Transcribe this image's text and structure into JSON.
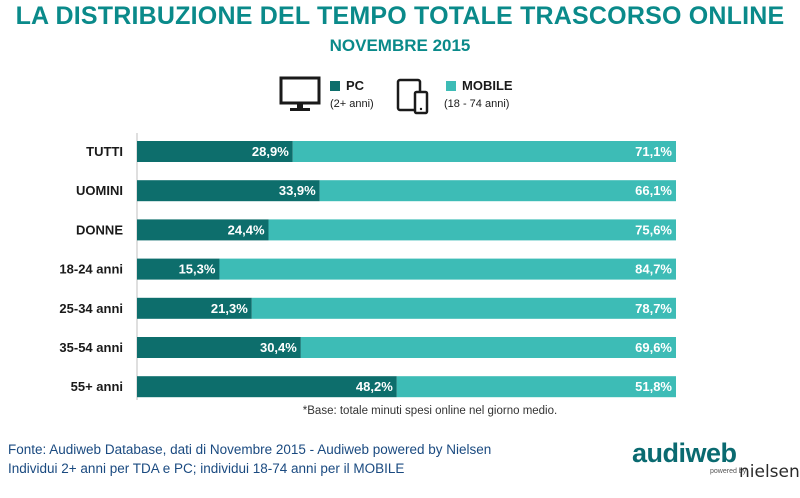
{
  "header": {
    "title": "LA DISTRIBUZIONE DEL TEMPO TOTALE TRASCORSO ONLINE",
    "subtitle": "NOVEMBRE 2015"
  },
  "legend": {
    "pc": {
      "label": "PC",
      "sub": "(2+ anni)",
      "icon": "desktop-monitor-icon",
      "color": "#0d6e6c"
    },
    "mobile": {
      "label": "MOBILE",
      "sub": "(18 - 74 anni)",
      "icon": "tablet-smartphone-icon",
      "color": "#3dbcb6"
    }
  },
  "chart_data": {
    "type": "bar",
    "orientation": "horizontal",
    "stacked": true,
    "normalized": "percent",
    "categories": [
      "TUTTI",
      "UOMINI",
      "DONNE",
      "18-24 anni",
      "25-34 anni",
      "35-54 anni",
      "55+ anni"
    ],
    "series": [
      {
        "name": "PC",
        "values": [
          28.9,
          33.9,
          24.4,
          15.3,
          21.3,
          30.4,
          48.2
        ],
        "labels": [
          "28,9%",
          "33,9%",
          "24,4%",
          "15,3%",
          "21,3%",
          "30,4%",
          "48,2%"
        ]
      },
      {
        "name": "MOBILE",
        "values": [
          71.1,
          66.1,
          75.6,
          84.7,
          78.7,
          69.6,
          51.8
        ],
        "labels": [
          "71,1%",
          "66,1%",
          "75,6%",
          "84,7%",
          "78,7%",
          "69,6%",
          "51,8%"
        ]
      }
    ],
    "xlim": [
      0,
      100
    ],
    "grid": false,
    "legend_position": "top-center"
  },
  "footnote": "*Base: totale minuti spesi online nel giorno medio.",
  "source": {
    "line1": "Fonte: Audiweb Database, dati di Novembre 2015 - Audiweb powered by Nielsen",
    "line2": "Individui 2+ anni per TDA e PC; individui 18-74 anni per il MOBILE"
  },
  "logo": {
    "main": "audiweb",
    "powered": "powered by",
    "brand": "nielsen"
  }
}
